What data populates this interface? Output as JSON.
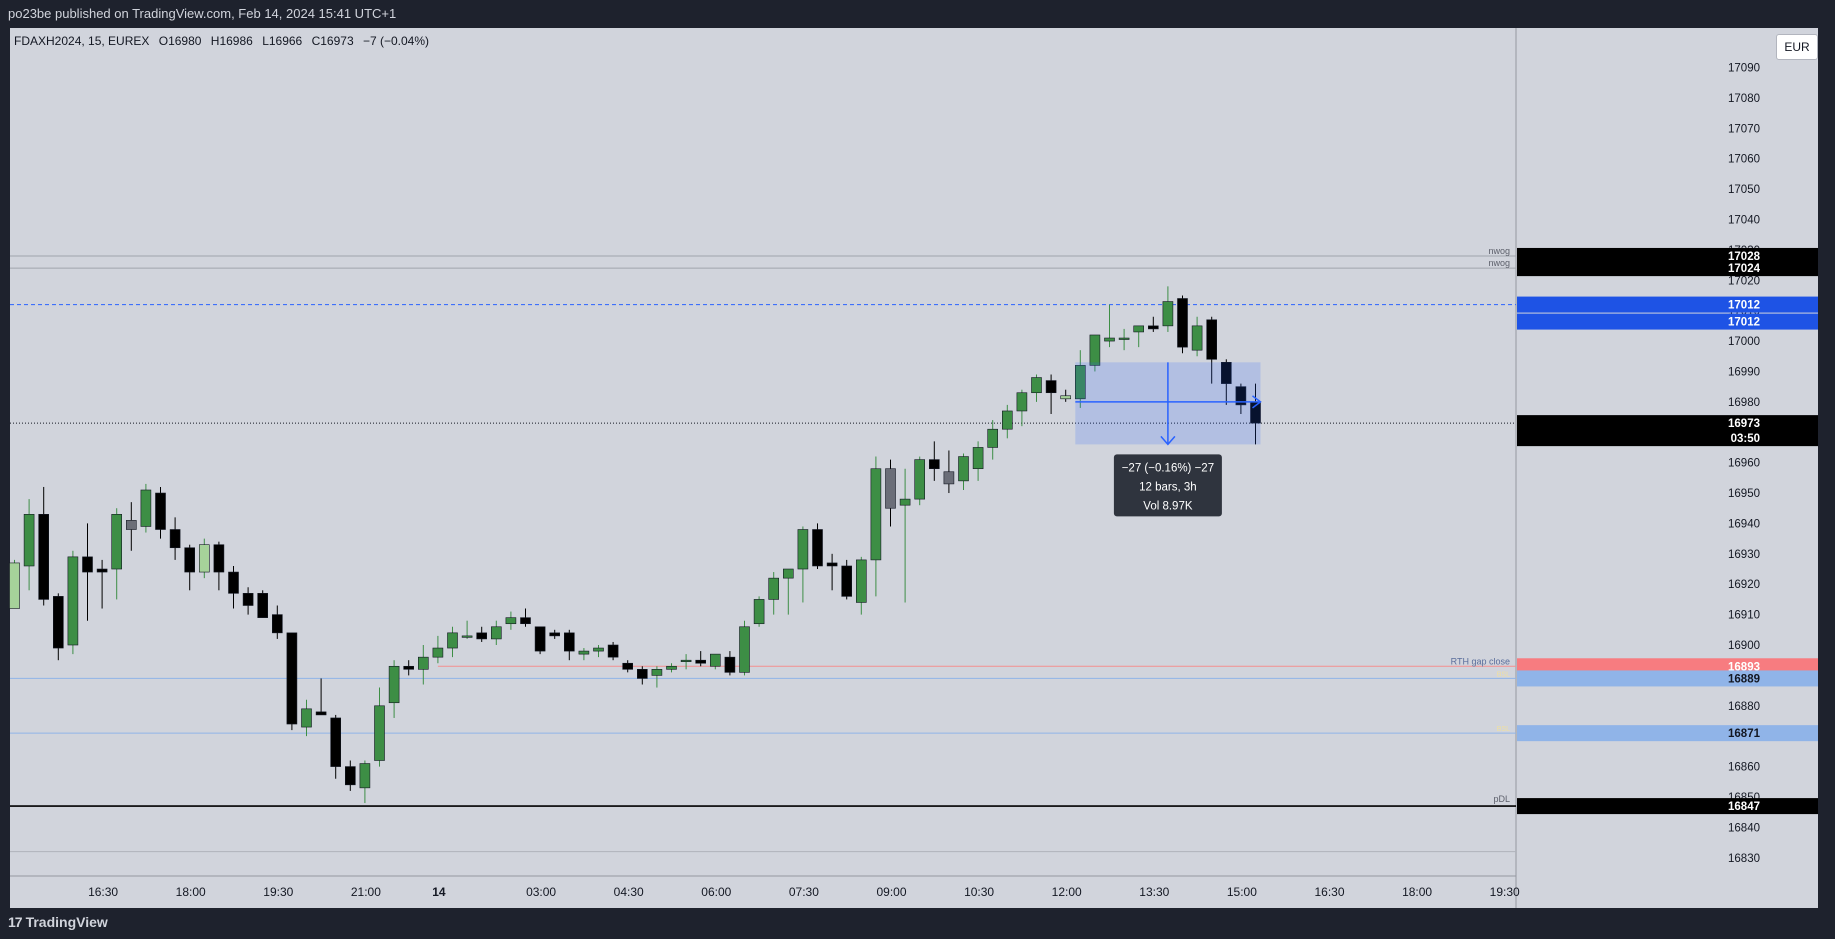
{
  "header": {
    "publish_text": "po23be published on TradingView.com, Feb 14, 2024 15:41 UTC+1"
  },
  "symbol": {
    "name": "FDAXH2024, 15, EUREX",
    "open": "O16980",
    "high": "H16986",
    "low": "L16966",
    "close": "C16973",
    "change": "−7 (−0.04%)"
  },
  "currency_button": "EUR",
  "footer": {
    "logo_text": "TradingView",
    "logo_mark": "17"
  },
  "colors": {
    "background": "#d1d4dc",
    "bull": "#3d8e45",
    "bear": "#000000",
    "bull_light": "#a6d29a",
    "neutral": "#6b6e78",
    "measure": "#2962ff",
    "rth_line": "#f48f8f",
    "bsl_line": "#90b4e8"
  },
  "chart_data": {
    "type": "candlestick",
    "title": "FDAXH2024, 15, EUREX",
    "y_range": [
      16824,
      17103
    ],
    "y_ticks": [
      17090,
      17080,
      17070,
      17060,
      17050,
      17040,
      17030,
      17020,
      17010,
      17000,
      16990,
      16980,
      16970,
      16960,
      16950,
      16940,
      16930,
      16920,
      16910,
      16900,
      16890,
      16880,
      16870,
      16860,
      16850,
      16840,
      16830
    ],
    "x_labels": [
      {
        "t": 6,
        "label": "16:30"
      },
      {
        "t": 12,
        "label": "18:00"
      },
      {
        "t": 18,
        "label": "19:30"
      },
      {
        "t": 24,
        "label": "21:00"
      },
      {
        "t": 29,
        "label": "14",
        "bold": true
      },
      {
        "t": 36,
        "label": "03:00"
      },
      {
        "t": 42,
        "label": "04:30"
      },
      {
        "t": 48,
        "label": "06:00"
      },
      {
        "t": 54,
        "label": "07:30"
      },
      {
        "t": 60,
        "label": "09:00"
      },
      {
        "t": 66,
        "label": "10:30"
      },
      {
        "t": 72,
        "label": "12:00"
      },
      {
        "t": 78,
        "label": "13:30"
      },
      {
        "t": 84,
        "label": "15:00"
      },
      {
        "t": 90,
        "label": "16:30"
      },
      {
        "t": 96,
        "label": "18:00"
      },
      {
        "t": 102,
        "label": "19:30"
      }
    ],
    "candles": [
      {
        "t": 0,
        "o": 16912,
        "h": 16928,
        "l": 16912,
        "c": 16927,
        "k": "bull_light"
      },
      {
        "t": 1,
        "o": 16926,
        "h": 16948,
        "l": 16918,
        "c": 16943
      },
      {
        "t": 2,
        "o": 16943,
        "h": 16952,
        "l": 16913,
        "c": 16915
      },
      {
        "t": 3,
        "o": 16916,
        "h": 16917,
        "l": 16895,
        "c": 16899
      },
      {
        "t": 4,
        "o": 16900,
        "h": 16931,
        "l": 16897,
        "c": 16929
      },
      {
        "t": 5,
        "o": 16929,
        "h": 16940,
        "l": 16908,
        "c": 16924
      },
      {
        "t": 6,
        "o": 16925,
        "h": 16928,
        "l": 16912,
        "c": 16924
      },
      {
        "t": 7,
        "o": 16925,
        "h": 16945,
        "l": 16915,
        "c": 16943
      },
      {
        "t": 8,
        "o": 16941,
        "h": 16947,
        "l": 16931,
        "c": 16938,
        "k": "neutral"
      },
      {
        "t": 9,
        "o": 16939,
        "h": 16953,
        "l": 16937,
        "c": 16951
      },
      {
        "t": 10,
        "o": 16950,
        "h": 16952,
        "l": 16935,
        "c": 16938
      },
      {
        "t": 11,
        "o": 16938,
        "h": 16942,
        "l": 16928,
        "c": 16932
      },
      {
        "t": 12,
        "o": 16932,
        "h": 16933,
        "l": 16918,
        "c": 16924
      },
      {
        "t": 13,
        "o": 16924,
        "h": 16935,
        "l": 16922,
        "c": 16933,
        "k": "bull_light"
      },
      {
        "t": 14,
        "o": 16933,
        "h": 16934,
        "l": 16918,
        "c": 16924
      },
      {
        "t": 15,
        "o": 16924,
        "h": 16926,
        "l": 16912,
        "c": 16917
      },
      {
        "t": 16,
        "o": 16917,
        "h": 16919,
        "l": 16910,
        "c": 16913
      },
      {
        "t": 17,
        "o": 16917,
        "h": 16918,
        "l": 16909,
        "c": 16909
      },
      {
        "t": 18,
        "o": 16910,
        "h": 16913,
        "l": 16902,
        "c": 16904
      },
      {
        "t": 19,
        "o": 16904,
        "h": 16904,
        "l": 16872,
        "c": 16874
      },
      {
        "t": 20,
        "o": 16873,
        "h": 16882,
        "l": 16870,
        "c": 16879
      },
      {
        "t": 21,
        "o": 16878,
        "h": 16889,
        "l": 16877,
        "c": 16877
      },
      {
        "t": 22,
        "o": 16876,
        "h": 16877,
        "l": 16856,
        "c": 16860
      },
      {
        "t": 23,
        "o": 16860,
        "h": 16862,
        "l": 16852,
        "c": 16854
      },
      {
        "t": 24,
        "o": 16853,
        "h": 16862,
        "l": 16848,
        "c": 16861
      },
      {
        "t": 25,
        "o": 16862,
        "h": 16886,
        "l": 16860,
        "c": 16880
      },
      {
        "t": 26,
        "o": 16881,
        "h": 16895,
        "l": 16876,
        "c": 16893
      },
      {
        "t": 27,
        "o": 16893,
        "h": 16895,
        "l": 16890,
        "c": 16892
      },
      {
        "t": 28,
        "o": 16892,
        "h": 16900,
        "l": 16887,
        "c": 16896
      },
      {
        "t": 29,
        "o": 16896,
        "h": 16903,
        "l": 16894,
        "c": 16899
      },
      {
        "t": 30,
        "o": 16899,
        "h": 16906,
        "l": 16896,
        "c": 16904
      },
      {
        "t": 31,
        "o": 16903,
        "h": 16908,
        "l": 16902,
        "c": 16903
      },
      {
        "t": 32,
        "o": 16904,
        "h": 16906,
        "l": 16901,
        "c": 16902
      },
      {
        "t": 33,
        "o": 16902,
        "h": 16908,
        "l": 16900,
        "c": 16906
      },
      {
        "t": 34,
        "o": 16907,
        "h": 16911,
        "l": 16905,
        "c": 16909
      },
      {
        "t": 35,
        "o": 16909,
        "h": 16912,
        "l": 16906,
        "c": 16907
      },
      {
        "t": 36,
        "o": 16906,
        "h": 16906,
        "l": 16897,
        "c": 16898
      },
      {
        "t": 37,
        "o": 16904,
        "h": 16905,
        "l": 16902,
        "c": 16903
      },
      {
        "t": 38,
        "o": 16904,
        "h": 16905,
        "l": 16895,
        "c": 16898
      },
      {
        "t": 39,
        "o": 16897,
        "h": 16899,
        "l": 16895,
        "c": 16898
      },
      {
        "t": 40,
        "o": 16898,
        "h": 16900,
        "l": 16896,
        "c": 16899
      },
      {
        "t": 41,
        "o": 16900,
        "h": 16901,
        "l": 16895,
        "c": 16896
      },
      {
        "t": 42,
        "o": 16894,
        "h": 16895,
        "l": 16891,
        "c": 16892
      },
      {
        "t": 43,
        "o": 16892,
        "h": 16893,
        "l": 16887,
        "c": 16889
      },
      {
        "t": 44,
        "o": 16890,
        "h": 16893,
        "l": 16886,
        "c": 16892
      },
      {
        "t": 45,
        "o": 16892,
        "h": 16894,
        "l": 16891,
        "c": 16893
      },
      {
        "t": 46,
        "o": 16895,
        "h": 16897,
        "l": 16892,
        "c": 16895
      },
      {
        "t": 47,
        "o": 16895,
        "h": 16898,
        "l": 16893,
        "c": 16894
      },
      {
        "t": 48,
        "o": 16893,
        "h": 16897,
        "l": 16892,
        "c": 16897
      },
      {
        "t": 49,
        "o": 16896,
        "h": 16898,
        "l": 16890,
        "c": 16891
      },
      {
        "t": 50,
        "o": 16891,
        "h": 16908,
        "l": 16890,
        "c": 16906
      },
      {
        "t": 51,
        "o": 16907,
        "h": 16916,
        "l": 16906,
        "c": 16915
      },
      {
        "t": 52,
        "o": 16915,
        "h": 16924,
        "l": 16910,
        "c": 16922
      },
      {
        "t": 53,
        "o": 16922,
        "h": 16925,
        "l": 16910,
        "c": 16925
      },
      {
        "t": 54,
        "o": 16925,
        "h": 16939,
        "l": 16914,
        "c": 16938
      },
      {
        "t": 55,
        "o": 16938,
        "h": 16940,
        "l": 16925,
        "c": 16926
      },
      {
        "t": 56,
        "o": 16927,
        "h": 16930,
        "l": 16918,
        "c": 16926
      },
      {
        "t": 57,
        "o": 16926,
        "h": 16928,
        "l": 16915,
        "c": 16916
      },
      {
        "t": 58,
        "o": 16914,
        "h": 16929,
        "l": 16910,
        "c": 16928
      },
      {
        "t": 59,
        "o": 16928,
        "h": 16962,
        "l": 16916,
        "c": 16958
      },
      {
        "t": 60,
        "o": 16958,
        "h": 16961,
        "l": 16939,
        "c": 16945,
        "k": "neutral"
      },
      {
        "t": 61,
        "o": 16946,
        "h": 16958,
        "l": 16914,
        "c": 16948
      },
      {
        "t": 62,
        "o": 16948,
        "h": 16962,
        "l": 16946,
        "c": 16961
      },
      {
        "t": 63,
        "o": 16961,
        "h": 16967,
        "l": 16954,
        "c": 16958
      },
      {
        "t": 64,
        "o": 16957,
        "h": 16964,
        "l": 16950,
        "c": 16953,
        "k": "neutral"
      },
      {
        "t": 65,
        "o": 16954,
        "h": 16963,
        "l": 16951,
        "c": 16962
      },
      {
        "t": 66,
        "o": 16958,
        "h": 16967,
        "l": 16954,
        "c": 16965
      },
      {
        "t": 67,
        "o": 16965,
        "h": 16974,
        "l": 16961,
        "c": 16971
      },
      {
        "t": 68,
        "o": 16971,
        "h": 16979,
        "l": 16968,
        "c": 16977
      },
      {
        "t": 69,
        "o": 16977,
        "h": 16984,
        "l": 16972,
        "c": 16983
      },
      {
        "t": 70,
        "o": 16983,
        "h": 16989,
        "l": 16980,
        "c": 16988
      },
      {
        "t": 71,
        "o": 16987,
        "h": 16989,
        "l": 16976,
        "c": 16983
      },
      {
        "t": 72,
        "o": 16982,
        "h": 16984,
        "l": 16980,
        "c": 16981,
        "k": "bull_light"
      },
      {
        "t": 73,
        "o": 16981,
        "h": 16997,
        "l": 16978,
        "c": 16992
      },
      {
        "t": 74,
        "o": 16992,
        "h": 17002,
        "l": 16990,
        "c": 17002
      },
      {
        "t": 75,
        "o": 17000,
        "h": 17012,
        "l": 16998,
        "c": 17001
      },
      {
        "t": 76,
        "o": 17001,
        "h": 17004,
        "l": 16997,
        "c": 17001
      },
      {
        "t": 77,
        "o": 17003,
        "h": 17005,
        "l": 16998,
        "c": 17005
      },
      {
        "t": 78,
        "o": 17005,
        "h": 17008,
        "l": 17003,
        "c": 17004
      },
      {
        "t": 79,
        "o": 17005,
        "h": 17018,
        "l": 17003,
        "c": 17013
      },
      {
        "t": 80,
        "o": 17014,
        "h": 17015,
        "l": 16996,
        "c": 16998
      },
      {
        "t": 81,
        "o": 16997,
        "h": 17008,
        "l": 16995,
        "c": 17005
      },
      {
        "t": 82,
        "o": 17007,
        "h": 17008,
        "l": 16986,
        "c": 16994
      },
      {
        "t": 83,
        "o": 16993,
        "h": 16994,
        "l": 16979,
        "c": 16986
      },
      {
        "t": 84,
        "o": 16985,
        "h": 16986,
        "l": 16976,
        "c": 16979
      },
      {
        "t": 85,
        "o": 16980,
        "h": 16986,
        "l": 16966,
        "c": 16973
      }
    ],
    "hlines": [
      {
        "price": 17028,
        "style": "solid",
        "color": "#a0a3ab",
        "label": "nwog",
        "tag": "17028",
        "tag_bg": "#000000",
        "tag_fg": "#ffffff"
      },
      {
        "price": 17024,
        "style": "solid",
        "color": "#a0a3ab",
        "label": "nwog",
        "tag": "17024",
        "tag_bg": "#000000",
        "tag_fg": "#ffffff"
      },
      {
        "price": 17012,
        "style": "dashed",
        "color": "#2962ff",
        "label": "",
        "tag": "17012",
        "tag_bg": "#1e53e5",
        "tag_fg": "#ffffff"
      },
      {
        "price": 16973,
        "style": "dotted",
        "color": "#131722",
        "label": "",
        "tag": "16973",
        "tag_bg": "#000000",
        "tag_fg": "#ffffff",
        "tag2": "03:50"
      },
      {
        "price": 16893,
        "style": "solid",
        "color": "#f48f8f",
        "label": "RTH gap close",
        "tag": "16893",
        "tag_bg": "#f77c80",
        "tag_fg": "#ffffff",
        "start_t": 29
      },
      {
        "price": 16889,
        "style": "solid",
        "color": "#90b4e8",
        "label": "BSL",
        "tag": "16889",
        "tag_bg": "#90b4e8",
        "tag_fg": "#131722"
      },
      {
        "price": 16871,
        "style": "solid",
        "color": "#90b4e8",
        "label": "BSL",
        "tag": "16871",
        "tag_bg": "#90b4e8",
        "tag_fg": "#131722"
      },
      {
        "price": 16847,
        "style": "solid",
        "color": "#000000",
        "label": "pDL",
        "tag": "16847",
        "tag_bg": "#000000",
        "tag_fg": "#ffffff",
        "thick": true
      },
      {
        "price": 16832,
        "style": "solid",
        "color": "#b0b3bb",
        "label": "",
        "tag": ""
      }
    ],
    "extra_tags": [
      {
        "price": 17012,
        "tag": "17012",
        "tag_bg": "#1e53e5",
        "tag_fg": "#ffffff",
        "offset": 1
      }
    ],
    "measure": {
      "t_start": 73,
      "t_end": 85,
      "price_top": 16993,
      "price_bottom": 16966,
      "price_from": 16980,
      "price_to": 16966,
      "lines": [
        "−27 (−0.16%) −27",
        "12 bars, 3h",
        "Vol 8.97K"
      ]
    }
  }
}
